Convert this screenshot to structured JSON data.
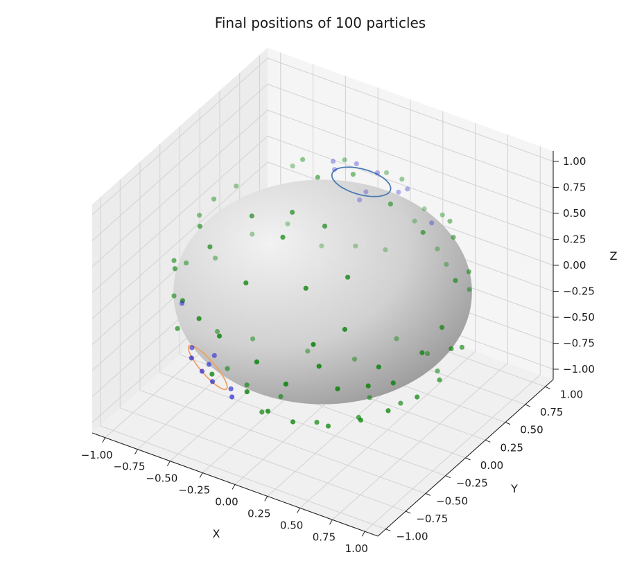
{
  "chart_data": {
    "type": "scatter",
    "title": "Final positions of 100 particles",
    "xlabel": "X",
    "ylabel": "Y",
    "zlabel": "Z",
    "xlim": [
      -1.1,
      1.1
    ],
    "ylim": [
      -1.1,
      1.1
    ],
    "zlim": [
      -1.1,
      1.1
    ],
    "x_ticks": [
      "−1.00",
      "−0.75",
      "−0.50",
      "−0.25",
      "0.00",
      "0.25",
      "0.50",
      "0.75",
      "1.00"
    ],
    "y_ticks": [
      "−1.00",
      "−0.75",
      "−0.50",
      "−0.25",
      "0.00",
      "0.25",
      "0.50",
      "0.75",
      "1.00"
    ],
    "z_ticks": [
      "−1.00",
      "−0.75",
      "−0.50",
      "−0.25",
      "0.00",
      "0.25",
      "0.50",
      "0.75",
      "1.00"
    ],
    "tick_values": [
      -1,
      -0.75,
      -0.5,
      -0.25,
      0,
      0.25,
      0.5,
      0.75,
      1
    ],
    "grid": true,
    "sphere": {
      "radius": 1,
      "color": "#9a9a9a"
    },
    "circles": [
      {
        "color": "#4a7bb5",
        "center": [
          -0.25,
          0.9,
          0.35
        ],
        "radius": 0.2
      },
      {
        "color": "#f0a063",
        "center": [
          -0.55,
          -0.55,
          -0.6
        ],
        "radius": 0.2
      }
    ],
    "series": [
      {
        "color": "#008000",
        "points": [
          [
            0.1,
            -0.99,
            0.05
          ],
          [
            0.3,
            -0.95,
            -0.1
          ],
          [
            -0.2,
            -0.97,
            0.15
          ],
          [
            0.5,
            -0.86,
            0.1
          ],
          [
            0.6,
            -0.79,
            -0.12
          ],
          [
            -0.4,
            -0.9,
            0.18
          ],
          [
            0.8,
            -0.6,
            0.05
          ],
          [
            0.85,
            -0.5,
            -0.15
          ],
          [
            -0.6,
            -0.78,
            0.18
          ],
          [
            0.95,
            -0.3,
            0.05
          ],
          [
            0.99,
            0.0,
            -0.1
          ],
          [
            0.9,
            0.2,
            0.38
          ],
          [
            0.7,
            0.5,
            0.5
          ],
          [
            0.4,
            0.2,
            0.89
          ],
          [
            -0.1,
            0.1,
            0.99
          ],
          [
            0.2,
            -0.3,
            0.93
          ],
          [
            0.0,
            -0.5,
            0.87
          ],
          [
            -0.3,
            -0.4,
            0.87
          ],
          [
            0.5,
            -0.5,
            0.71
          ],
          [
            0.3,
            -0.7,
            0.65
          ],
          [
            -0.1,
            -0.8,
            0.59
          ],
          [
            0.6,
            -0.7,
            0.39
          ],
          [
            0.45,
            -0.85,
            0.28
          ],
          [
            -0.5,
            -0.6,
            0.62
          ],
          [
            -0.7,
            -0.4,
            0.59
          ],
          [
            -0.8,
            -0.55,
            0.24
          ],
          [
            -0.9,
            -0.4,
            0.17
          ],
          [
            -0.95,
            0.0,
            0.31
          ],
          [
            -0.85,
            0.3,
            0.43
          ],
          [
            -0.6,
            0.6,
            0.53
          ],
          [
            -0.4,
            0.4,
            0.82
          ],
          [
            -0.2,
            0.6,
            0.77
          ],
          [
            0.0,
            0.8,
            0.6
          ],
          [
            0.2,
            0.95,
            0.24
          ],
          [
            0.4,
            0.85,
            0.34
          ],
          [
            0.55,
            0.7,
            0.45
          ],
          [
            -0.2,
            -0.2,
            -0.96
          ],
          [
            0.2,
            -0.4,
            -0.89
          ],
          [
            0.4,
            -0.2,
            -0.89
          ],
          [
            0.6,
            -0.5,
            -0.62
          ],
          [
            0.75,
            -0.4,
            -0.53
          ],
          [
            0.85,
            -0.2,
            -0.49
          ],
          [
            0.9,
            0.0,
            -0.44
          ],
          [
            0.7,
            0.3,
            -0.65
          ],
          [
            0.5,
            0.5,
            -0.71
          ],
          [
            0.2,
            0.6,
            -0.77
          ],
          [
            0.0,
            0.4,
            -0.92
          ],
          [
            -0.3,
            0.3,
            -0.91
          ],
          [
            0.3,
            0.1,
            -0.95
          ],
          [
            0.95,
            0.2,
            -0.24
          ],
          [
            0.98,
            -0.1,
            0.17
          ],
          [
            0.7,
            0.7,
            -0.14
          ],
          [
            0.4,
            0.9,
            -0.17
          ],
          [
            0.1,
            0.99,
            0.05
          ],
          [
            -0.1,
            0.95,
            -0.29
          ],
          [
            -0.3,
            0.9,
            -0.31
          ],
          [
            -0.5,
            0.8,
            -0.33
          ],
          [
            -0.7,
            0.7,
            -0.14
          ],
          [
            -0.85,
            0.5,
            -0.17
          ],
          [
            -0.95,
            0.2,
            -0.24
          ],
          [
            -0.99,
            -0.1,
            -0.1
          ],
          [
            -0.9,
            -0.4,
            -0.17
          ],
          [
            -0.75,
            -0.6,
            -0.28
          ],
          [
            -0.3,
            -0.9,
            -0.31
          ],
          [
            0.1,
            -0.85,
            -0.52
          ],
          [
            -0.1,
            -0.6,
            -0.79
          ],
          [
            0.0,
            -0.95,
            -0.31
          ],
          [
            0.2,
            -0.7,
            -0.68
          ],
          [
            -0.4,
            -0.3,
            -0.87
          ],
          [
            -0.6,
            0.1,
            -0.79
          ],
          [
            -0.75,
            -0.1,
            -0.65
          ],
          [
            0.6,
            0.0,
            -0.8
          ],
          [
            0.3,
            0.95,
            -0.1
          ],
          [
            0.85,
            0.45,
            0.27
          ],
          [
            0.65,
            0.2,
            0.73
          ],
          [
            0.05,
            0.3,
            0.95
          ],
          [
            -0.05,
            -0.3,
            0.95
          ],
          [
            0.35,
            -0.5,
            -0.79
          ],
          [
            -0.9,
            0.1,
            0.42
          ],
          [
            0.75,
            -0.65,
            -0.12
          ],
          [
            -0.55,
            -0.3,
            -0.78
          ],
          [
            0.15,
            0.75,
            0.64
          ]
        ]
      },
      {
        "color": "#1f1fd0",
        "points": [
          [
            -0.4,
            0.8,
            0.45
          ],
          [
            -0.1,
            0.85,
            0.52
          ],
          [
            -0.3,
            0.95,
            0.1
          ],
          [
            0.0,
            0.95,
            0.31
          ],
          [
            -0.35,
            0.7,
            0.62
          ],
          [
            -0.2,
            0.75,
            0.63
          ],
          [
            0.1,
            0.9,
            0.42
          ],
          [
            -0.25,
            0.95,
            0.2
          ],
          [
            0.25,
            0.96,
            0.12
          ],
          [
            -0.45,
            -0.65,
            -0.62
          ],
          [
            -0.7,
            -0.5,
            -0.51
          ],
          [
            -0.6,
            -0.45,
            -0.66
          ],
          [
            -0.5,
            -0.7,
            -0.51
          ],
          [
            -0.4,
            -0.5,
            -0.77
          ],
          [
            -0.65,
            -0.3,
            -0.7
          ],
          [
            -0.9,
            -0.3,
            -0.31
          ],
          [
            -0.3,
            -0.65,
            -0.7
          ],
          [
            -0.55,
            -0.75,
            -0.37
          ]
        ]
      }
    ]
  }
}
